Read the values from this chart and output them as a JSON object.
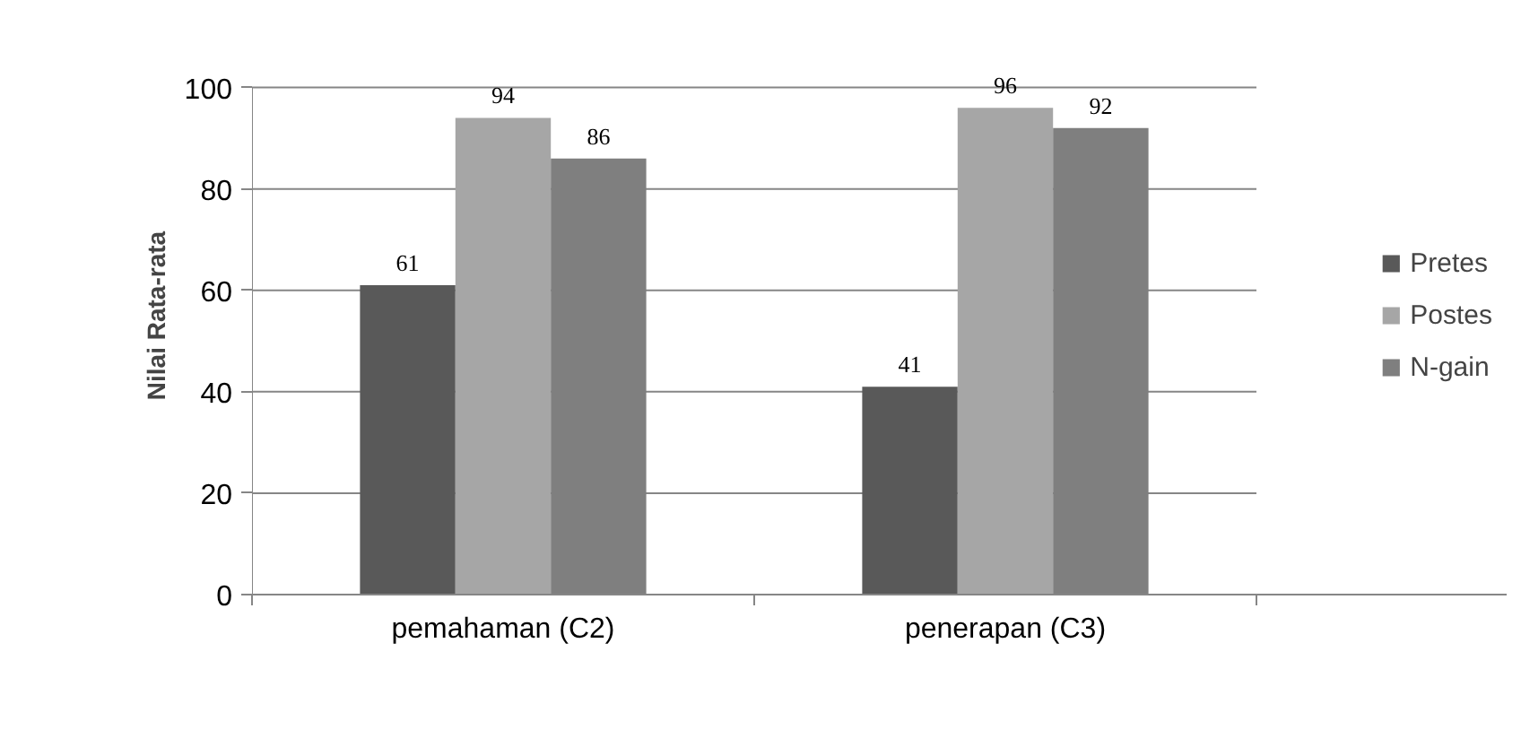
{
  "chart_data": {
    "type": "bar",
    "ylabel": "Nilai Rata-rata",
    "categories": [
      "pemahaman (C2)",
      "penerapan (C3)"
    ],
    "series": [
      {
        "name": "Pretes",
        "color": "#595959",
        "values": [
          61,
          41
        ]
      },
      {
        "name": "Postes",
        "color": "#a6a6a6",
        "values": [
          94,
          96
        ]
      },
      {
        "name": "N-gain",
        "color": "#7f7f7f",
        "values": [
          86,
          92
        ]
      }
    ],
    "ylim": [
      0,
      100
    ],
    "yticks": [
      0,
      20,
      40,
      60,
      80,
      100
    ],
    "grid": "y",
    "legend": "right",
    "data_labels": true
  }
}
